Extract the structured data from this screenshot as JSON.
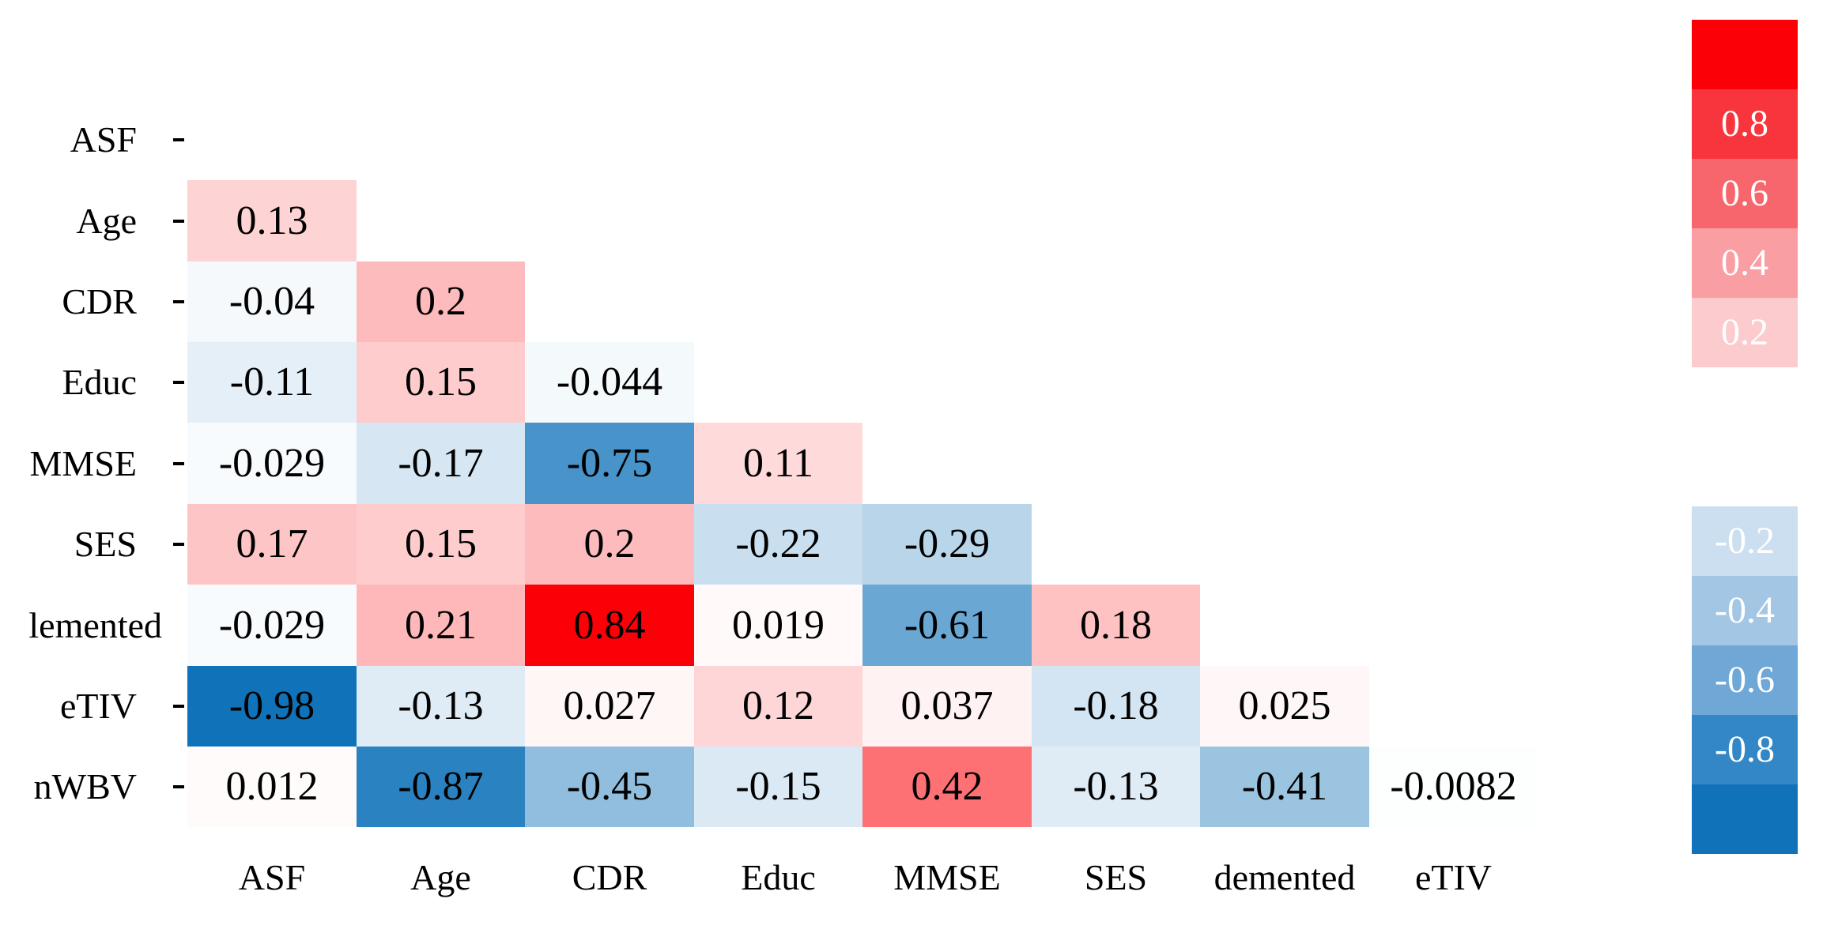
{
  "figure": {
    "background": "#ffffff",
    "text_color": "#000000"
  },
  "chart_data": {
    "type": "heatmap",
    "subtype": "lower-triangular-correlation-matrix",
    "title": "",
    "xlabel": "",
    "ylabel": "",
    "grid": false,
    "legend_position": "right",
    "value_range": [
      -1,
      1
    ],
    "row_labels": [
      "ASF",
      "Age",
      "CDR",
      "Educ",
      "MMSE",
      "SES",
      "lemented",
      "eTIV",
      "nWBV"
    ],
    "col_labels": [
      "ASF",
      "Age",
      "CDR",
      "Educ",
      "MMSE",
      "SES",
      "demented",
      "eTIV"
    ],
    "rows": [
      {
        "label": "ASF",
        "tick": true,
        "values": []
      },
      {
        "label": "Age",
        "tick": true,
        "values": [
          "0.13"
        ]
      },
      {
        "label": "CDR",
        "tick": true,
        "values": [
          "-0.04",
          "0.2"
        ]
      },
      {
        "label": "Educ",
        "tick": true,
        "values": [
          "-0.11",
          "0.15",
          "-0.044"
        ]
      },
      {
        "label": "MMSE",
        "tick": true,
        "values": [
          "-0.029",
          "-0.17",
          "-0.75",
          "0.11"
        ]
      },
      {
        "label": "SES",
        "tick": true,
        "values": [
          "0.17",
          "0.15",
          "0.2",
          "-0.22",
          "-0.29"
        ]
      },
      {
        "label": "lemented",
        "tick": false,
        "values": [
          "-0.029",
          "0.21",
          "0.84",
          "0.019",
          "-0.61",
          "0.18"
        ]
      },
      {
        "label": "eTIV",
        "tick": true,
        "values": [
          "-0.98",
          "-0.13",
          "0.027",
          "0.12",
          "0.037",
          "-0.18",
          "0.025"
        ]
      },
      {
        "label": "nWBV",
        "tick": true,
        "values": [
          "0.012",
          "-0.87",
          "-0.45",
          "-0.15",
          "0.42",
          "-0.13",
          "-0.41",
          "-0.0082"
        ]
      }
    ],
    "colorbar": {
      "blocks": [
        {
          "label": "",
          "color": "#FB0007"
        },
        {
          "label": "0.8",
          "color": "#F8343C"
        },
        {
          "label": "0.6",
          "color": "#F7666D"
        },
        {
          "label": "0.4",
          "color": "#F99EA3"
        },
        {
          "label": "0.2",
          "color": "#FCCBCE"
        },
        {
          "label": "",
          "color": "#FFFFFF"
        },
        {
          "label": "",
          "color": "#FFFFFF"
        },
        {
          "label": "-0.2",
          "color": "#CCDFF0"
        },
        {
          "label": "-0.4",
          "color": "#A3C6E4"
        },
        {
          "label": "-0.6",
          "color": "#6FA8D6"
        },
        {
          "label": "-0.8",
          "color": "#3387C6"
        },
        {
          "label": "",
          "color": "#1072B8"
        }
      ],
      "label_text_color": "#FFFFFF"
    },
    "colors": {
      "positive_end": "#FB0007",
      "negative_end": "#1072B8",
      "neutral": "#FFFFFF",
      "cell_text": "#000000"
    }
  }
}
